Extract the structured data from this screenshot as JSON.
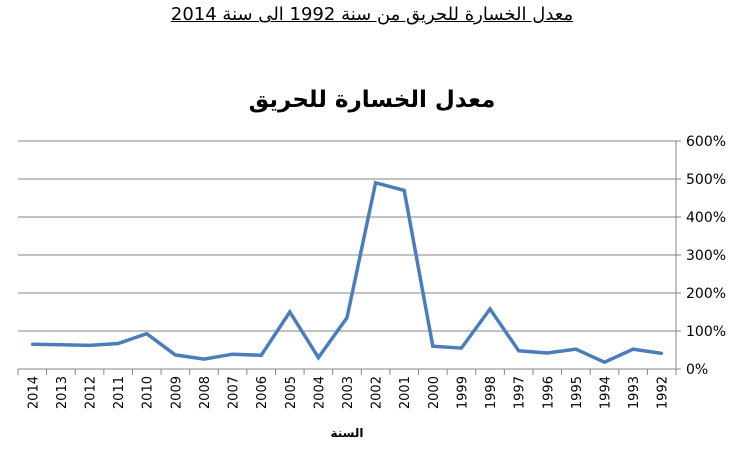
{
  "heading": "معدل الخسارة للحريق من سنة 1992 الى سنة 2014",
  "chart_data": {
    "type": "line",
    "title": "معدل الخسارة للحريق",
    "xlabel": "السنة",
    "ylabel": "",
    "categories": [
      "2014",
      "2013",
      "2012",
      "2011",
      "2010",
      "2009",
      "2008",
      "2007",
      "2006",
      "2005",
      "2004",
      "2003",
      "2002",
      "2001",
      "2000",
      "1999",
      "1998",
      "1997",
      "1996",
      "1995",
      "1994",
      "1993",
      "1992"
    ],
    "series": [
      {
        "values": [
          65,
          64,
          62,
          67,
          93,
          37,
          26,
          39,
          36,
          150,
          30,
          135,
          490,
          470,
          60,
          55,
          158,
          48,
          42,
          52,
          18,
          52,
          41
        ],
        "color": "#4a7ebb"
      }
    ],
    "ylim": [
      0,
      600
    ],
    "yticks": [
      "0%",
      "100%",
      "200%",
      "300%",
      "400%",
      "500%",
      "600%"
    ],
    "y_unit": "%",
    "grid": true,
    "legend": "none",
    "y_axis_side": "right"
  }
}
